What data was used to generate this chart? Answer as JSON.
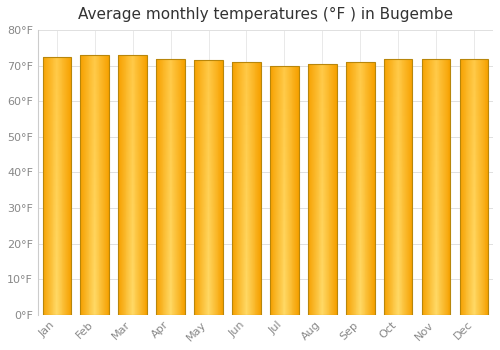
{
  "title": "Average monthly temperatures (°F ) in Bugembe",
  "months": [
    "Jan",
    "Feb",
    "Mar",
    "Apr",
    "May",
    "Jun",
    "Jul",
    "Aug",
    "Sep",
    "Oct",
    "Nov",
    "Dec"
  ],
  "values": [
    72.5,
    73.0,
    73.0,
    72.0,
    71.5,
    71.0,
    70.0,
    70.5,
    71.0,
    72.0,
    72.0,
    72.0
  ],
  "bar_color_left": "#F5A623",
  "bar_color_center": "#FFD54F",
  "bar_color_bottom": "#FFD54F",
  "bar_color_top": "#FFA726",
  "bar_edge_color": "#B8860B",
  "background_color": "#FFFFFF",
  "plot_bg_color": "#FFFFFF",
  "grid_color": "#E0E0E0",
  "ylim": [
    0,
    80
  ],
  "yticks": [
    0,
    10,
    20,
    30,
    40,
    50,
    60,
    70,
    80
  ],
  "title_fontsize": 11,
  "tick_fontsize": 8,
  "tick_color": "#888888",
  "bar_width": 0.75
}
